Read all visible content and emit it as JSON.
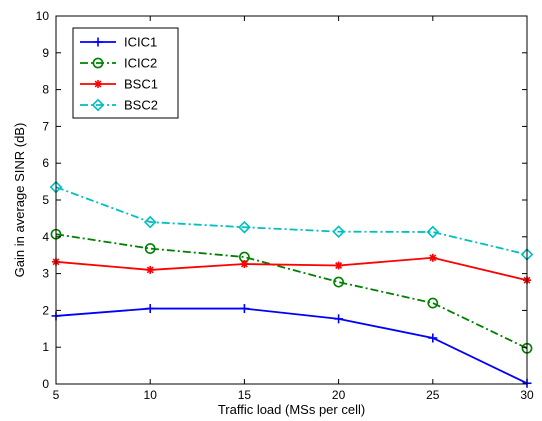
{
  "chart_data": {
    "type": "line",
    "title": "",
    "xlabel": "Traffic load (MSs per cell)",
    "ylabel": "Gain in average SINR (dB)",
    "xlim": [
      5,
      30
    ],
    "ylim": [
      0,
      10
    ],
    "xticks": [
      5,
      10,
      15,
      20,
      25,
      30
    ],
    "yticks": [
      0,
      1,
      2,
      3,
      4,
      5,
      6,
      7,
      8,
      9,
      10
    ],
    "x": [
      5,
      10,
      15,
      20,
      25,
      30
    ],
    "grid": false,
    "legend_position": "top-left",
    "series": [
      {
        "name": "ICIC1",
        "values": [
          1.85,
          2.05,
          2.05,
          1.77,
          1.25,
          0.02
        ],
        "color": "#0000ff",
        "line_style": "solid",
        "marker": "plus"
      },
      {
        "name": "ICIC2",
        "values": [
          4.07,
          3.68,
          3.45,
          2.77,
          2.2,
          0.97
        ],
        "color": "#008000",
        "line_style": "dash-dot",
        "marker": "circle"
      },
      {
        "name": "BSC1",
        "values": [
          3.32,
          3.1,
          3.26,
          3.22,
          3.43,
          2.82
        ],
        "color": "#ff0000",
        "line_style": "solid",
        "marker": "asterisk"
      },
      {
        "name": "BSC2",
        "values": [
          5.35,
          4.4,
          4.26,
          4.14,
          4.13,
          3.52
        ],
        "color": "#00bfbf",
        "line_style": "dash-dot",
        "marker": "diamond"
      }
    ]
  }
}
